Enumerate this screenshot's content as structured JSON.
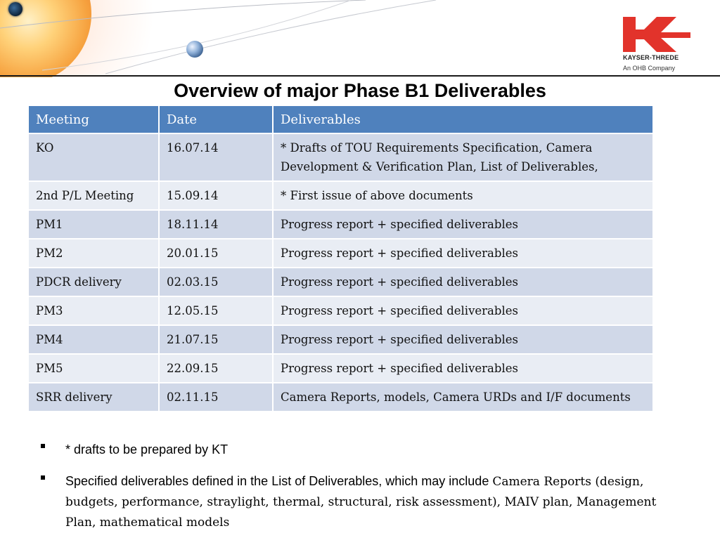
{
  "title": "Overview of major Phase B1 Deliverables",
  "logo": {
    "name": "KAYSER-THREDE",
    "tagline": "An OHB Company",
    "brand_color": "#e2332b"
  },
  "colors": {
    "header_bg": "#4f81bd",
    "row_odd": "#d0d8e8",
    "row_even": "#e9edf4"
  },
  "table": {
    "headers": [
      "Meeting",
      "Date",
      "Deliverables"
    ],
    "rows": [
      [
        "KO",
        "16.07.14",
        "* Drafts of TOU Requirements Specification, Camera Development & Verification Plan, List of Deliverables,"
      ],
      [
        "2nd P/L Meeting",
        "15.09.14",
        "* First issue of above documents"
      ],
      [
        "PM1",
        "18.11.14",
        "Progress report + specified deliverables"
      ],
      [
        "PM2",
        "20.01.15",
        "Progress report + specified deliverables"
      ],
      [
        "PDCR delivery",
        "02.03.15",
        "Progress report + specified deliverables"
      ],
      [
        "PM3",
        "12.05.15",
        "Progress report + specified deliverables"
      ],
      [
        "PM4",
        "21.07.15",
        "Progress report + specified deliverables"
      ],
      [
        "PM5",
        "22.09.15",
        "Progress report + specified deliverables"
      ],
      [
        "SRR delivery",
        "02.11.15",
        "Camera Reports, models, Camera URDs and I/F documents"
      ]
    ]
  },
  "notes": [
    {
      "text": "* drafts to be prepared by KT",
      "serif_tail": ""
    },
    {
      "text": "Specified deliverables defined in the List of Deliverables, which may include ",
      "serif_tail": "Camera Reports (design, budgets, performance, straylight, thermal, structural, risk assessment), MAIV plan,  Management Plan, mathematical models"
    }
  ]
}
